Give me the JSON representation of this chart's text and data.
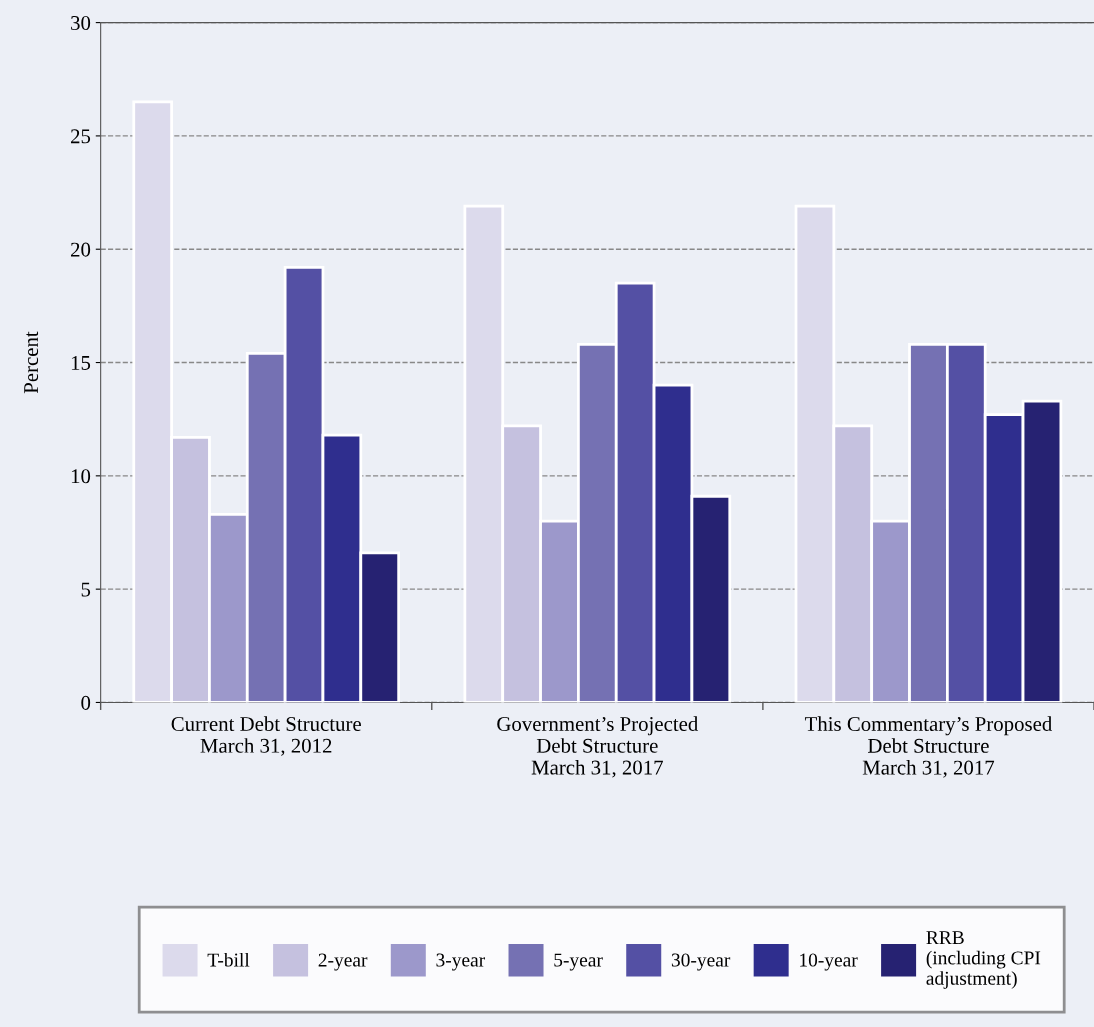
{
  "chart_data": {
    "type": "bar",
    "ylabel": "Percent",
    "categories": [
      "Current Debt Structure\nMarch 31, 2012",
      "Government’s Projected\nDebt Structure\nMarch 31, 2017",
      "This Commentary’s Proposed\nDebt Structure\nMarch 31, 2017"
    ],
    "series": [
      {
        "name": "T-bill",
        "color": "#dcdaec",
        "values": [
          26.5,
          21.9,
          21.9
        ]
      },
      {
        "name": "2-year",
        "color": "#c5c1df",
        "values": [
          11.7,
          12.2,
          12.2
        ]
      },
      {
        "name": "3-year",
        "color": "#9c98cb",
        "values": [
          8.3,
          8.0,
          8.0
        ]
      },
      {
        "name": "5-year",
        "color": "#7571b3",
        "values": [
          15.4,
          15.8,
          15.8
        ]
      },
      {
        "name": "30-year",
        "color": "#5450a4",
        "values": [
          19.2,
          18.5,
          15.8
        ]
      },
      {
        "name": "10-year",
        "color": "#2f2e8e",
        "values": [
          11.8,
          14.0,
          12.7
        ]
      },
      {
        "name": "RRB\n(including CPI\nadjustment)",
        "color": "#262272",
        "values": [
          6.6,
          9.1,
          13.3
        ]
      }
    ],
    "ylim": [
      0,
      30
    ],
    "yticks": [
      0,
      5,
      10,
      15,
      20,
      25,
      30
    ],
    "grid": "y",
    "legend": "bottom"
  }
}
